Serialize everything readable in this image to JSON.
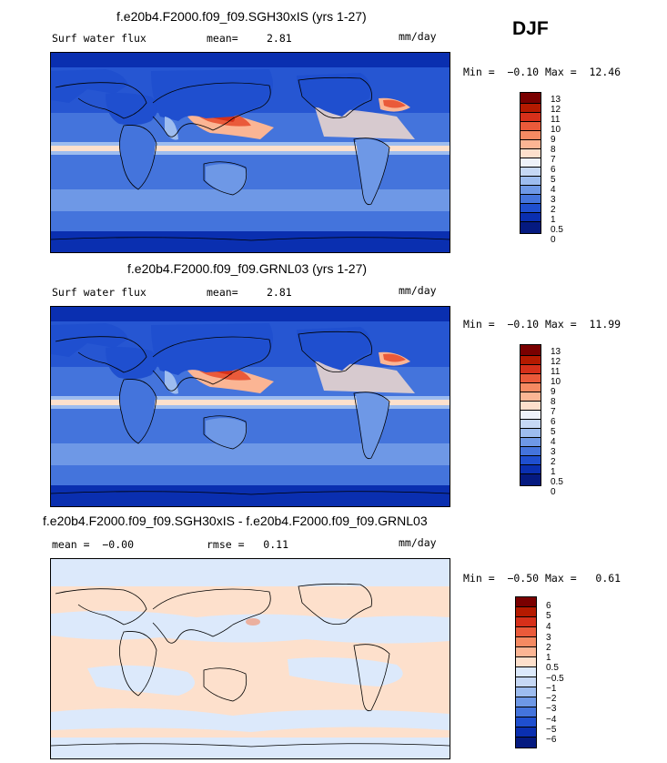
{
  "season": "DJF",
  "panels": [
    {
      "title": "f.e20b4.F2000.f09_f09.SGH30xIS (yrs 1-27)",
      "variable": "Surf water flux",
      "stat_label": "mean=",
      "stat_value": "2.81",
      "units": "mm/day",
      "minmax": "Min =  −0.10 Max =  12.46",
      "levels": [
        "13",
        "12",
        "11",
        "10",
        "9",
        "8",
        "7",
        "6",
        "5",
        "4",
        "3",
        "2",
        "1",
        "0.5",
        "0"
      ]
    },
    {
      "title": "f.e20b4.F2000.f09_f09.GRNL03 (yrs 1-27)",
      "variable": "Surf water flux",
      "stat_label": "mean=",
      "stat_value": "2.81",
      "units": "mm/day",
      "minmax": "Min =  −0.10 Max =  11.99",
      "levels": [
        "13",
        "12",
        "11",
        "10",
        "9",
        "8",
        "7",
        "6",
        "5",
        "4",
        "3",
        "2",
        "1",
        "0.5",
        "0"
      ]
    },
    {
      "title": "f.e20b4.F2000.f09_f09.SGH30xIS - f.e20b4.F2000.f09_f09.GRNL03",
      "stat_line": "mean =  −0.00",
      "rmse_line": "rmse =   0.11",
      "units": "mm/day",
      "minmax": "Min =  −0.50 Max =   0.61",
      "levels": [
        "6",
        "5",
        "4",
        "3",
        "2",
        "1",
        "0.5",
        "−0.5",
        "−1",
        "−2",
        "−3",
        "−4",
        "−5",
        "−6"
      ]
    }
  ],
  "colors": {
    "abs_scale": [
      "#7a0000",
      "#b51a00",
      "#d6301a",
      "#ea5a3a",
      "#f58a62",
      "#fbb594",
      "#fde0cc",
      "#eef2fa",
      "#c6d8f5",
      "#9dbcef",
      "#6e98e6",
      "#4474dc",
      "#1f4fcf",
      "#0a2fb0",
      "#051a80"
    ],
    "diff_scale": [
      "#7a0000",
      "#b51a00",
      "#d6301a",
      "#ea5a3a",
      "#f58a62",
      "#fbb594",
      "#fde0cc",
      "#dce9fb",
      "#c6d8f5",
      "#9dbcef",
      "#6e98e6",
      "#4474dc",
      "#1f4fcf",
      "#0a2fb0",
      "#051a80"
    ]
  },
  "chart_data": [
    {
      "type": "heatmap",
      "title": "f.e20b4.F2000.f09_f09.SGH30xIS (yrs 1-27)",
      "variable": "Surf water flux",
      "units": "mm/day",
      "season": "DJF",
      "mean": 2.81,
      "min": -0.1,
      "max": 12.46,
      "contour_levels": [
        0,
        0.5,
        1,
        2,
        3,
        4,
        5,
        6,
        7,
        8,
        9,
        10,
        11,
        12,
        13
      ]
    },
    {
      "type": "heatmap",
      "title": "f.e20b4.F2000.f09_f09.GRNL03 (yrs 1-27)",
      "variable": "Surf water flux",
      "units": "mm/day",
      "season": "DJF",
      "mean": 2.81,
      "min": -0.1,
      "max": 11.99,
      "contour_levels": [
        0,
        0.5,
        1,
        2,
        3,
        4,
        5,
        6,
        7,
        8,
        9,
        10,
        11,
        12,
        13
      ]
    },
    {
      "type": "heatmap",
      "title": "f.e20b4.F2000.f09_f09.SGH30xIS - f.e20b4.F2000.f09_f09.GRNL03",
      "units": "mm/day",
      "season": "DJF",
      "mean": -0.0,
      "rmse": 0.11,
      "min": -0.5,
      "max": 0.61,
      "contour_levels": [
        -6,
        -5,
        -4,
        -3,
        -2,
        -1,
        -0.5,
        0.5,
        1,
        2,
        3,
        4,
        5,
        6
      ]
    }
  ]
}
